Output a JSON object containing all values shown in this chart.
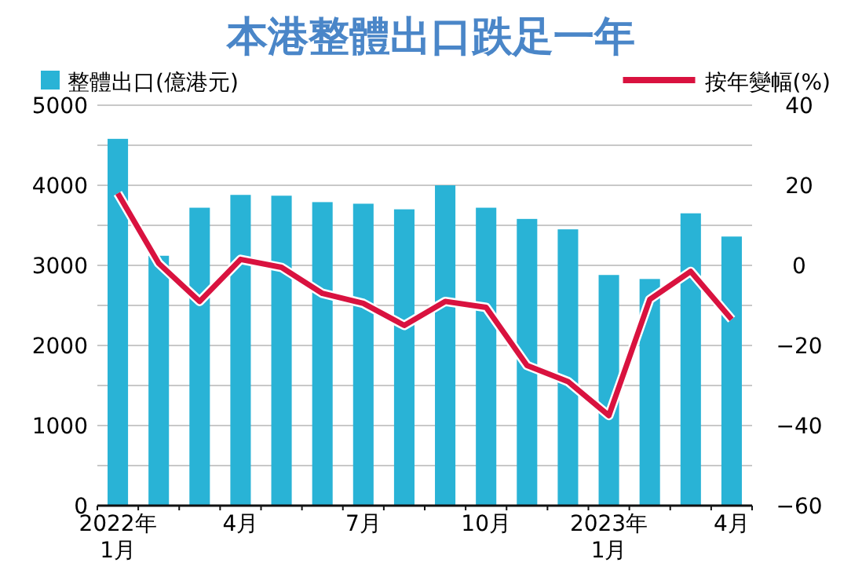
{
  "chart_data": {
    "type": "bar",
    "title": "本港整體出口跌足一年",
    "categories": [
      "2022年\n1月",
      null,
      null,
      "4月",
      null,
      null,
      "7月",
      null,
      null,
      "10月",
      null,
      null,
      "2023年\n1月",
      null,
      null,
      "4月"
    ],
    "series": [
      {
        "name": "整體出口(億港元)",
        "color": "#29b3d6",
        "values": [
          4580,
          3120,
          3720,
          3880,
          3870,
          3790,
          3770,
          3700,
          4000,
          3720,
          3580,
          3450,
          2880,
          2830,
          3650,
          3360
        ]
      },
      {
        "name": "按年變幅(%)",
        "type": "line",
        "axis": "y2",
        "color": "#d9123f",
        "values": [
          18,
          0.5,
          -9,
          1.5,
          -0.5,
          -7,
          -9.5,
          -15,
          -9,
          -10.5,
          -25,
          -29,
          -37.5,
          -8.5,
          -1.5,
          -13.5
        ]
      }
    ],
    "ylim": [
      0,
      5000
    ],
    "yticks": [
      0,
      {
        "value": 500,
        "label": null
      },
      1000,
      {
        "value": 1500,
        "label": null
      },
      2000,
      {
        "value": 2500,
        "label": null
      },
      3000,
      {
        "value": 3500,
        "label": null
      },
      4000,
      {
        "value": 4500,
        "label": null
      },
      5000
    ],
    "y2lim": [
      -60,
      40
    ],
    "y2ticks": [
      -60,
      -40,
      -20,
      0,
      20,
      40
    ],
    "grid": "y",
    "legend": "top",
    "marker": "none",
    "line_style": "solid"
  }
}
